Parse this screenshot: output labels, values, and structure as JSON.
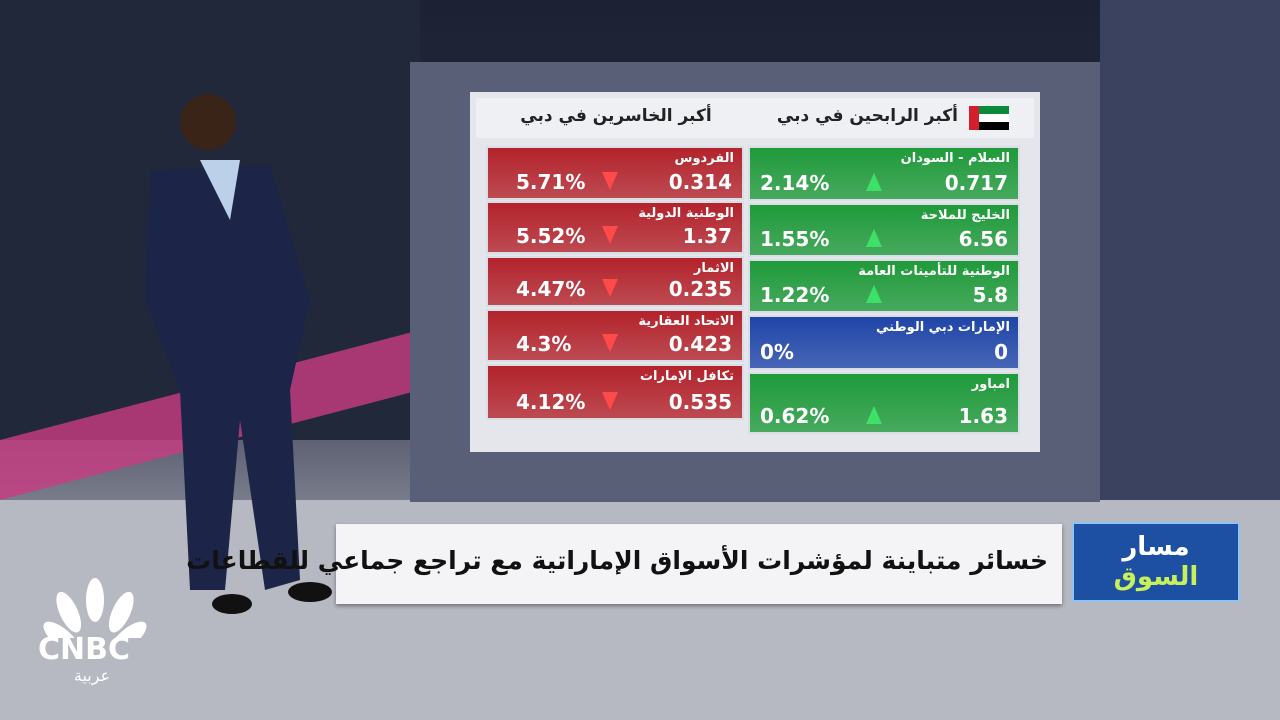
{
  "header": {
    "gainers_title": "أكبر الرابحين في دبي",
    "losers_title": "أكبر الخاسرين في دبي"
  },
  "gainers": [
    {
      "name": "السلام - السودان",
      "price": "0.717",
      "change": "2.14%",
      "color": "#1f9a3a",
      "arrow": "up"
    },
    {
      "name": "الخليج للملاحة",
      "price": "6.56",
      "change": "1.55%",
      "color": "#1f9a3a",
      "arrow": "up"
    },
    {
      "name": "الوطنية للتأمينات العامة",
      "price": "5.8",
      "change": "1.22%",
      "color": "#1f9a3a",
      "arrow": "up"
    },
    {
      "name": "الإمارات دبي الوطني",
      "price": "0",
      "change": "0%",
      "color": "#1f45a8"
    },
    {
      "name": "امباور",
      "price": "1.63",
      "change": "0.62%",
      "color": "#1f9a3a",
      "arrow": "up"
    }
  ],
  "losers": [
    {
      "name": "الفردوس",
      "price": "0.314",
      "change": "5.71%",
      "color": "#b3232b",
      "arrow": "down"
    },
    {
      "name": "الوطنية الدولية",
      "price": "1.37",
      "change": "5.52%",
      "color": "#b3232b",
      "arrow": "down"
    },
    {
      "name": "الاثمار",
      "price": "0.235",
      "change": "4.47%",
      "color": "#b3232b",
      "arrow": "down"
    },
    {
      "name": "الاتحاد العقارية",
      "price": "0.423",
      "change": "4.3%",
      "color": "#b3232b",
      "arrow": "down"
    },
    {
      "name": "تكافل الإمارات",
      "price": "0.535",
      "change": "4.12%",
      "color": "#b3232b",
      "arrow": "down"
    }
  ],
  "headline": "خسائر متباينة لمؤشرات الأسواق الإماراتية مع تراجع جماعي للقطاعات",
  "show_logo": {
    "line1": "مسار",
    "line2": "السوق"
  },
  "channel": {
    "name": "CNBC",
    "subtitle": "عربية"
  }
}
